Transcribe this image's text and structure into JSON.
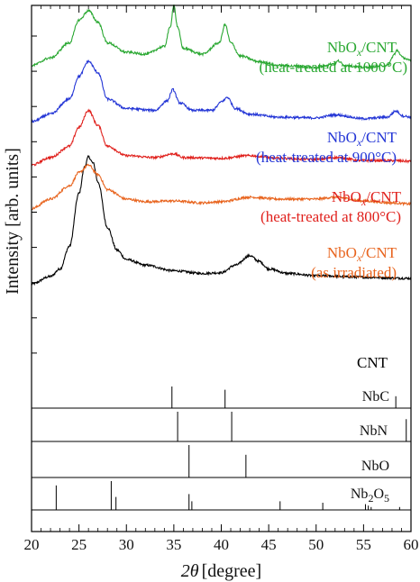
{
  "chart_data": {
    "type": "line",
    "xlabel_symbol": "2θ",
    "xlabel_unit": "[degree]",
    "ylabel": "Intensity [arb. units]",
    "xlim": [
      20,
      60
    ],
    "xticks": [
      20,
      25,
      30,
      35,
      40,
      45,
      50,
      55,
      60
    ],
    "ylim": [
      0,
      1
    ],
    "series": [
      {
        "name": "CNT",
        "label_lines": [
          "CNT"
        ],
        "color": "#000000",
        "baseline": 0.262,
        "points": [
          [
            20,
            0.0
          ],
          [
            22,
            0.02
          ],
          [
            23,
            0.04
          ],
          [
            24,
            0.1
          ],
          [
            25,
            0.24
          ],
          [
            25.6,
            0.31
          ],
          [
            26,
            0.337
          ],
          [
            26.5,
            0.32
          ],
          [
            27,
            0.27
          ],
          [
            28,
            0.15
          ],
          [
            29,
            0.09
          ],
          [
            30,
            0.065
          ],
          [
            32,
            0.05
          ],
          [
            35,
            0.035
          ],
          [
            38,
            0.028
          ],
          [
            40,
            0.03
          ],
          [
            41.5,
            0.05
          ],
          [
            43,
            0.075
          ],
          [
            44,
            0.06
          ],
          [
            45,
            0.04
          ],
          [
            47,
            0.028
          ],
          [
            50,
            0.022
          ],
          [
            55,
            0.018
          ],
          [
            60,
            0.015
          ]
        ]
      },
      {
        "name": "NbOx/CNT (as irradiated)",
        "label_lines": [
          "NbOx/CNT",
          "(as irradiated)"
        ],
        "color": "#e8641e",
        "baseline": 0.462,
        "points": [
          [
            20,
            0.0
          ],
          [
            22,
            0.025
          ],
          [
            24,
            0.06
          ],
          [
            25,
            0.095
          ],
          [
            26,
            0.115
          ],
          [
            27,
            0.09
          ],
          [
            28,
            0.05
          ],
          [
            30,
            0.025
          ],
          [
            32,
            0.018
          ],
          [
            35,
            0.02
          ],
          [
            38,
            0.015
          ],
          [
            40,
            0.018
          ],
          [
            43,
            0.03
          ],
          [
            46,
            0.025
          ],
          [
            50,
            0.025
          ],
          [
            52,
            0.03
          ],
          [
            55,
            0.02
          ],
          [
            58,
            0.015
          ],
          [
            60,
            0.012
          ]
        ]
      },
      {
        "name": "NbOx/CNT (heat-treated at 800°C)",
        "label_lines": [
          "NbOx/CNT",
          "(heat-treated at 800°C)"
        ],
        "color": "#e0201c",
        "baseline": 0.577,
        "points": [
          [
            20,
            0.0
          ],
          [
            22,
            0.02
          ],
          [
            24,
            0.05
          ],
          [
            25,
            0.1
          ],
          [
            26,
            0.145
          ],
          [
            27,
            0.105
          ],
          [
            28,
            0.05
          ],
          [
            30,
            0.025
          ],
          [
            33,
            0.02
          ],
          [
            35,
            0.03
          ],
          [
            36,
            0.02
          ],
          [
            40,
            0.018
          ],
          [
            43,
            0.025
          ],
          [
            46,
            0.018
          ],
          [
            50,
            0.015
          ],
          [
            52,
            0.02
          ],
          [
            55,
            0.012
          ],
          [
            58,
            0.012
          ],
          [
            60,
            0.01
          ]
        ]
      },
      {
        "name": "NbOx/CNT (heat-treated at 900°C)",
        "label_lines": [
          "NbOx/CNT",
          "(heat-treated at 900°C)"
        ],
        "color": "#2436d6",
        "baseline": 0.692,
        "points": [
          [
            20,
            0.0
          ],
          [
            22,
            0.02
          ],
          [
            24,
            0.06
          ],
          [
            25,
            0.12
          ],
          [
            26,
            0.16
          ],
          [
            27,
            0.13
          ],
          [
            28,
            0.06
          ],
          [
            30,
            0.035
          ],
          [
            33,
            0.03
          ],
          [
            34.3,
            0.055
          ],
          [
            34.9,
            0.085
          ],
          [
            35.6,
            0.05
          ],
          [
            37,
            0.03
          ],
          [
            39,
            0.03
          ],
          [
            40.2,
            0.055
          ],
          [
            40.6,
            0.065
          ],
          [
            41.5,
            0.035
          ],
          [
            43,
            0.02
          ],
          [
            46,
            0.012
          ],
          [
            50,
            0.01
          ],
          [
            52,
            0.018
          ],
          [
            55,
            0.008
          ],
          [
            57.5,
            0.012
          ],
          [
            58.4,
            0.028
          ],
          [
            59.2,
            0.015
          ],
          [
            60,
            0.012
          ]
        ]
      },
      {
        "name": "NbOx/CNT (heat-treated at 1000°C)",
        "label_lines": [
          "NbOx/CNT",
          "(heat-treated at 1000°C)"
        ],
        "color": "#2aa832",
        "baseline": 0.841,
        "points": [
          [
            20,
            0.0
          ],
          [
            22,
            0.02
          ],
          [
            24,
            0.06
          ],
          [
            25,
            0.12
          ],
          [
            26,
            0.145
          ],
          [
            27,
            0.115
          ],
          [
            28,
            0.06
          ],
          [
            30,
            0.035
          ],
          [
            32,
            0.03
          ],
          [
            34,
            0.05
          ],
          [
            34.6,
            0.1
          ],
          [
            35,
            0.16
          ],
          [
            35.4,
            0.1
          ],
          [
            36,
            0.045
          ],
          [
            38,
            0.03
          ],
          [
            39.8,
            0.06
          ],
          [
            40.4,
            0.108
          ],
          [
            41,
            0.06
          ],
          [
            42,
            0.025
          ],
          [
            44,
            0.01
          ],
          [
            46,
            0.0
          ],
          [
            50,
            -0.005
          ],
          [
            52,
            0.005
          ],
          [
            52.3,
            0.012
          ],
          [
            53,
            0.0
          ],
          [
            55,
            -0.005
          ],
          [
            57.5,
            0.0
          ],
          [
            58.3,
            0.03
          ],
          [
            58.5,
            0.04
          ],
          [
            59.2,
            0.02
          ],
          [
            60,
            0.012
          ]
        ]
      }
    ],
    "reference_panels": [
      {
        "name": "NbC",
        "label_lines": [
          "NbC"
        ],
        "peaks": [
          [
            34.8,
            1.0
          ],
          [
            40.4,
            0.85
          ],
          [
            58.4,
            0.55
          ]
        ]
      },
      {
        "name": "NbN",
        "label_lines": [
          "NbN"
        ],
        "peaks": [
          [
            35.4,
            1.0
          ],
          [
            41.1,
            1.0
          ],
          [
            59.5,
            0.75
          ]
        ]
      },
      {
        "name": "NbO",
        "label_lines": [
          "NbO"
        ],
        "peaks": [
          [
            36.6,
            1.0
          ],
          [
            42.6,
            0.7
          ]
        ]
      },
      {
        "name": "Nb2O5",
        "label_lines": [
          "Nb2O5"
        ],
        "peaks": [
          [
            22.6,
            0.85
          ],
          [
            28.4,
            1.0
          ],
          [
            28.9,
            0.45
          ],
          [
            36.6,
            0.55
          ],
          [
            36.9,
            0.3
          ],
          [
            46.2,
            0.3
          ],
          [
            50.7,
            0.25
          ],
          [
            55.2,
            0.2
          ],
          [
            55.5,
            0.15
          ],
          [
            55.8,
            0.1
          ],
          [
            58.8,
            0.1
          ]
        ]
      }
    ]
  }
}
